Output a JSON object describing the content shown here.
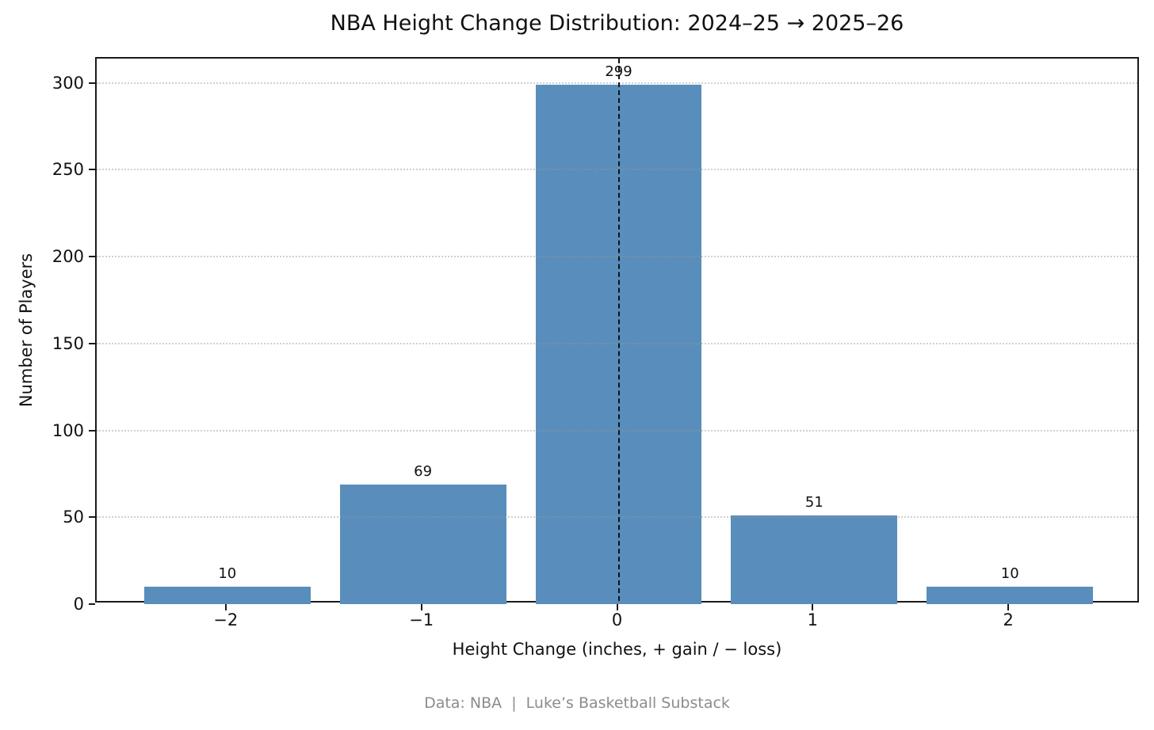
{
  "figure": {
    "title": "NBA Height Change Distribution: 2024–25 → 2025–26",
    "footer": "Data: NBA  |  Luke’s Basketball Substack"
  },
  "chart_data": {
    "type": "bar",
    "title": "NBA Height Change Distribution: 2024–25 → 2025–26",
    "categories": [
      "−2",
      "−1",
      "0",
      "1",
      "2"
    ],
    "x": [
      -2,
      -1,
      0,
      1,
      2
    ],
    "values": [
      10,
      69,
      299,
      51,
      10
    ],
    "bar_value_labels": [
      "10",
      "69",
      "299",
      "51",
      "10"
    ],
    "xlabel": "Height Change (inches, + gain / − loss)",
    "ylabel": "Number of Players",
    "yticks": [
      0,
      50,
      100,
      150,
      200,
      250,
      300
    ],
    "ytick_labels": [
      "0",
      "50",
      "100",
      "150",
      "200",
      "250",
      "300"
    ],
    "xlim": [
      -2.6675,
      2.6675
    ],
    "ylim": [
      0,
      314
    ],
    "bar_width": 0.85,
    "bar_color": "#598ebc",
    "grid": "horizontal-dotted",
    "grid_color": "#969696",
    "reference_line": {
      "x": 0,
      "style": "dashed",
      "color": "#111111"
    },
    "legend": "none",
    "caption": "Data: NBA  |  Luke’s Basketball Substack"
  }
}
